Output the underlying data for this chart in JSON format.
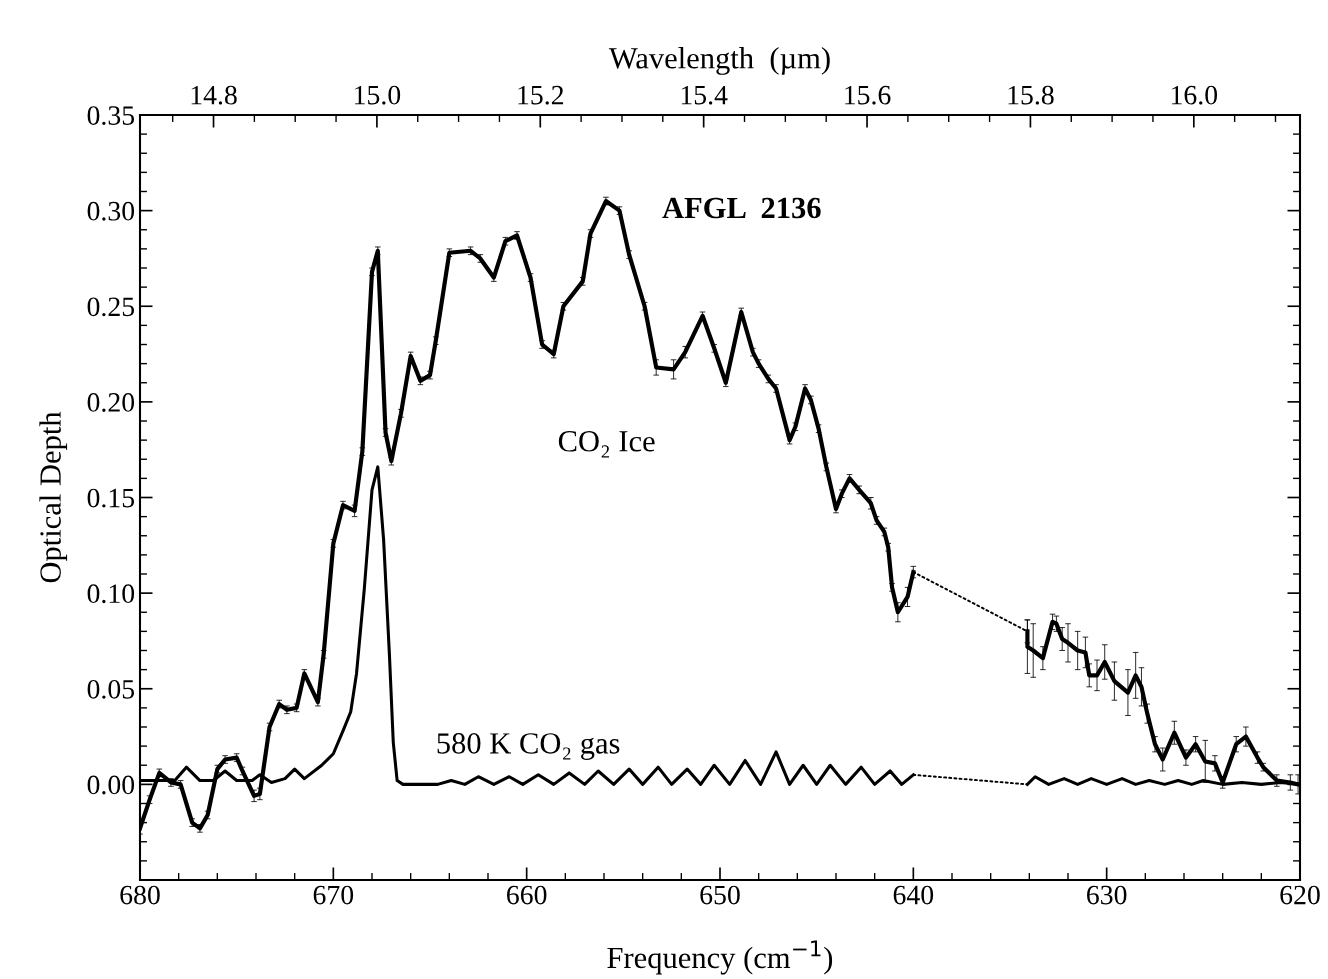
{
  "chart_data": {
    "type": "line",
    "title": "AFGL  2136",
    "xlabel": "Frequency (cm$^{−1}$)",
    "ylabel": "Optical Depth",
    "x2label": "Wavelength  (µm)",
    "xlim": [
      680,
      620
    ],
    "xticks": [
      680,
      670,
      660,
      650,
      640,
      630,
      620
    ],
    "x2lim": [
      14.71,
      16.13
    ],
    "x2ticks": [
      {
        "value": 14.8,
        "label": "14.8"
      },
      {
        "value": 15.0,
        "label": "15.0"
      },
      {
        "value": 15.2,
        "label": "15.2"
      },
      {
        "value": 15.4,
        "label": "15.4"
      },
      {
        "value": 15.6,
        "label": "15.6"
      },
      {
        "value": 15.8,
        "label": "15.8"
      },
      {
        "value": 16.0,
        "label": "16.0"
      }
    ],
    "ylim": [
      -0.05,
      0.35
    ],
    "yticks": [
      {
        "value": 0,
        "label": "0.00"
      },
      {
        "value": 0.05,
        "label": "0.05"
      },
      {
        "value": 0.1,
        "label": "0.10"
      },
      {
        "value": 0.15,
        "label": "0.15"
      },
      {
        "value": 0.2,
        "label": "0.20"
      },
      {
        "value": 0.25,
        "label": "0.25"
      },
      {
        "value": 0.3,
        "label": "0.30"
      },
      {
        "value": 0.35,
        "label": "0.35"
      }
    ],
    "grid": false,
    "marker": "none",
    "series": [
      {
        "name": "CO₂ Ice",
        "color": "#000000",
        "line_style": "solid",
        "x": [
          680,
          679.5,
          679.0,
          678.4,
          677.9,
          677.3,
          676.9,
          676.5,
          676.0,
          675.6,
          675.0,
          674.7,
          674.1,
          673.8,
          673.3,
          672.8,
          672.4,
          671.9,
          671.5,
          670.8,
          670.5,
          670.0,
          669.5,
          668.9,
          668.5,
          668.0,
          667.7,
          667.3,
          667.0,
          666.5,
          666.0,
          665.5,
          665.0,
          664.7,
          664.0,
          662.9,
          662.4,
          661.7,
          661.1,
          660.5,
          659.8,
          659.2,
          658.6,
          658.1,
          657.1,
          656.7,
          655.9,
          655.2,
          654.7,
          653.9,
          653.3,
          652.4,
          651.8,
          650.9,
          650.3,
          649.7,
          648.9,
          648.3,
          648.0,
          647.5,
          647.1,
          646.4,
          646.1,
          645.6,
          645.3,
          644.9,
          644.5,
          644.0,
          643.7,
          643.3,
          642.8,
          642.2,
          641.9,
          641.5,
          641.3,
          641.1,
          640.8,
          640.3,
          640.0
        ],
        "values": [
          -0.023,
          -0.008,
          0.006,
          0.001,
          0.0,
          -0.02,
          -0.023,
          -0.016,
          0.008,
          0.013,
          0.014,
          0.007,
          -0.006,
          -0.005,
          0.03,
          0.042,
          0.039,
          0.04,
          0.058,
          0.043,
          0.068,
          0.126,
          0.146,
          0.143,
          0.174,
          0.268,
          0.279,
          0.184,
          0.169,
          0.194,
          0.224,
          0.211,
          0.214,
          0.232,
          0.278,
          0.279,
          0.275,
          0.265,
          0.284,
          0.287,
          0.265,
          0.23,
          0.225,
          0.25,
          0.263,
          0.288,
          0.305,
          0.3,
          0.277,
          0.25,
          0.218,
          0.217,
          0.226,
          0.245,
          0.228,
          0.21,
          0.247,
          0.226,
          0.22,
          0.212,
          0.207,
          0.18,
          0.187,
          0.207,
          0.201,
          0.186,
          0.166,
          0.144,
          0.152,
          0.16,
          0.154,
          0.147,
          0.138,
          0.132,
          0.124,
          0.103,
          0.09,
          0.098,
          0.111
        ],
        "errors": [
          0.003,
          0.002,
          0.002,
          0.002,
          0.002,
          0.002,
          0.002,
          0.002,
          0.002,
          0.002,
          0.002,
          0.002,
          0.003,
          0.003,
          0.002,
          0.002,
          0.002,
          0.002,
          0.002,
          0.002,
          0.002,
          0.002,
          0.002,
          0.003,
          0.002,
          0.002,
          0.002,
          0.002,
          0.002,
          0.002,
          0.002,
          0.002,
          0.002,
          0.002,
          0.002,
          0.002,
          0.002,
          0.002,
          0.002,
          0.002,
          0.002,
          0.002,
          0.002,
          0.002,
          0.002,
          0.002,
          0.002,
          0.002,
          0.002,
          0.002,
          0.004,
          0.005,
          0.003,
          0.002,
          0.002,
          0.002,
          0.002,
          0.002,
          0.002,
          0.002,
          0.002,
          0.002,
          0.002,
          0.002,
          0.002,
          0.002,
          0.002,
          0.002,
          0.002,
          0.002,
          0.002,
          0.003,
          0.002,
          0.002,
          0.002,
          0.002,
          0.005,
          0.005,
          0.003
        ]
      },
      {
        "color": "#000000",
        "line_style": "solid",
        "x": [
          634.1,
          634.1,
          633.8,
          633.3,
          632.8,
          632.6,
          632.3,
          632.0,
          631.5,
          631.1,
          630.9,
          630.5,
          630.1,
          629.6,
          628.9,
          628.5,
          628.2,
          627.9,
          627.5,
          627.1,
          626.5,
          625.9,
          625.4,
          624.9,
          624.4,
          624.0,
          623.3,
          622.8,
          622.2,
          621.9,
          621.2,
          620.5,
          620.1
        ],
        "values": [
          0.08,
          0.072,
          0.07,
          0.066,
          0.085,
          0.084,
          0.076,
          0.074,
          0.07,
          0.069,
          0.057,
          0.057,
          0.064,
          0.054,
          0.048,
          0.057,
          0.051,
          0.037,
          0.021,
          0.013,
          0.027,
          0.014,
          0.021,
          0.012,
          0.011,
          0.001,
          0.021,
          0.025,
          0.014,
          0.009,
          0.002,
          0.001,
          0.0
        ],
        "errors": [
          0.006,
          0.014,
          0.014,
          0.006,
          0.004,
          0.004,
          0.006,
          0.01,
          0.01,
          0.008,
          0.006,
          0.008,
          0.009,
          0.01,
          0.012,
          0.012,
          0.01,
          0.005,
          0.004,
          0.006,
          0.006,
          0.004,
          0.004,
          0.011,
          0.004,
          0.003,
          0.004,
          0.005,
          0.003,
          0.002,
          0.003,
          0.004,
          0.005
        ]
      },
      {
        "color": "#000000",
        "line_style": "dotted",
        "x": [
          640.0,
          634.1
        ],
        "values": [
          0.111,
          0.08
        ]
      },
      {
        "name": "580 K CO₂ gas",
        "color": "#000000",
        "line_style": "solid",
        "x": [
          680,
          678.2,
          677.6,
          676.9,
          676.2,
          675.6,
          675.0,
          674.2,
          673.8,
          673.2,
          672.5,
          672.0,
          671.5,
          670.6,
          670.0,
          669.5,
          669.1,
          668.8,
          668.4,
          668.0,
          667.7,
          667.4,
          667.1,
          666.9,
          666.7,
          666.4,
          665.2,
          664.6,
          663.9,
          663.2,
          662.5,
          661.7,
          660.9,
          660.2,
          659.4,
          658.6,
          657.8,
          657.0,
          656.3,
          655.5,
          654.7,
          654.0,
          653.2,
          652.5,
          651.7,
          651.0,
          650.3,
          649.5,
          648.7,
          647.9,
          647.1,
          646.4,
          645.7,
          645.0,
          644.3,
          643.5,
          642.7,
          642.0,
          641.2,
          640.6,
          640.0
        ],
        "values": [
          0.002,
          0.002,
          0.009,
          0.002,
          0.002,
          0.007,
          0.002,
          0.002,
          0.005,
          0.001,
          0.003,
          0.008,
          0.003,
          0.01,
          0.016,
          0.028,
          0.038,
          0.058,
          0.102,
          0.154,
          0.166,
          0.128,
          0.068,
          0.022,
          0.002,
          0.0,
          0.0,
          0.0,
          0.002,
          0.0,
          0.004,
          0.0,
          0.004,
          0.0,
          0.005,
          0.0,
          0.006,
          0.0,
          0.007,
          0.0,
          0.008,
          0.0,
          0.009,
          0.0,
          0.008,
          0.0,
          0.01,
          0.0,
          0.0125,
          0.0,
          0.017,
          0.0,
          0.01,
          0.0,
          0.01,
          0.0,
          0.009,
          0.0,
          0.007,
          0.0,
          0.005
        ]
      },
      {
        "color": "#000000",
        "line_style": "dotted",
        "x": [
          640.0,
          634.1
        ],
        "values": [
          0.005,
          0.0
        ]
      },
      {
        "color": "#000000",
        "line_style": "solid",
        "x": [
          634.1,
          633.7,
          633.0,
          632.2,
          631.5,
          630.8,
          630.0,
          629.2,
          628.5,
          627.8,
          627.0,
          626.3,
          625.6,
          625.0,
          624.0,
          623.0,
          622.0,
          621.0,
          620.0
        ],
        "values": [
          0.0,
          0.004,
          0.0,
          0.003,
          0.0,
          0.003,
          0.0,
          0.003,
          0.0,
          0.002,
          0.0,
          0.002,
          0.0,
          0.002,
          0.0,
          0.001,
          0.0,
          0.001,
          0.0
        ]
      }
    ]
  }
}
